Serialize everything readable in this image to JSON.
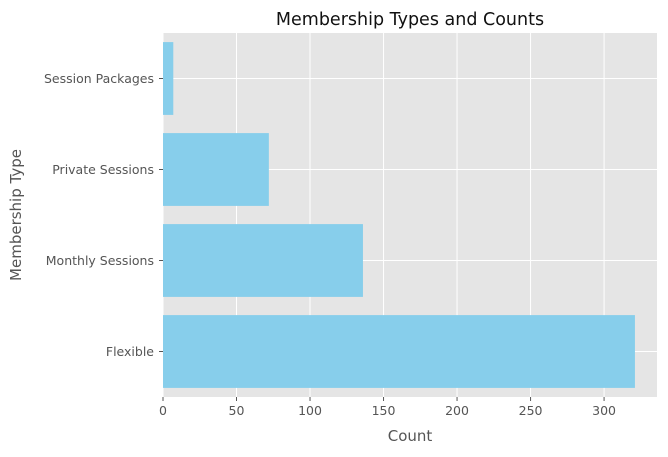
{
  "chart_data": {
    "type": "bar",
    "orientation": "horizontal",
    "title": "Membership Types and Counts",
    "xlabel": "Count",
    "ylabel": "Membership Type",
    "categories": [
      "Flexible",
      "Monthly Sessions",
      "Private Sessions",
      "Session Packages"
    ],
    "values": [
      321,
      136,
      72,
      7
    ],
    "xlim": [
      0,
      336
    ],
    "xticks": [
      0,
      50,
      100,
      150,
      200,
      250,
      300
    ],
    "grid": true,
    "colors": {
      "bar": "#87ceeb",
      "plot_background": "#e5e5e5",
      "grid": "#ffffff"
    }
  }
}
